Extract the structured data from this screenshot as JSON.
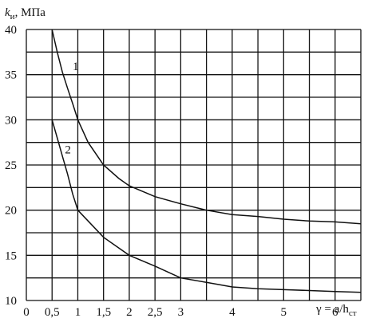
{
  "chart_data": {
    "type": "line",
    "ylabel_main": "k",
    "ylabel_sub": "и",
    "ylabel_unit": ", МПа",
    "xlabel_main": "γ = a/h",
    "xlabel_sub": "ст",
    "xlim": [
      0,
      6.5
    ],
    "ylim": [
      10,
      40
    ],
    "x_ticks": [
      {
        "value": 0,
        "label": "0"
      },
      {
        "value": 0.5,
        "label": "0,5"
      },
      {
        "value": 1,
        "label": "1"
      },
      {
        "value": 1.5,
        "label": "1,5"
      },
      {
        "value": 2,
        "label": "2"
      },
      {
        "value": 2.5,
        "label": "2,5"
      },
      {
        "value": 3,
        "label": "3"
      },
      {
        "value": 4,
        "label": "4"
      },
      {
        "value": 5,
        "label": "5"
      },
      {
        "value": 6,
        "label": "6"
      }
    ],
    "y_ticks": [
      {
        "value": 10,
        "label": "10"
      },
      {
        "value": 15,
        "label": "15"
      },
      {
        "value": 20,
        "label": "20"
      },
      {
        "value": 25,
        "label": "25"
      },
      {
        "value": 30,
        "label": "30"
      },
      {
        "value": 35,
        "label": "35"
      },
      {
        "value": 40,
        "label": "40"
      }
    ],
    "grid": true,
    "series": [
      {
        "name": "1",
        "label_at": [
          0.9,
          35.5
        ],
        "x": [
          0.5,
          0.6,
          0.7,
          0.8,
          0.9,
          1.0,
          1.2,
          1.5,
          1.8,
          2.0,
          2.5,
          3.0,
          3.5,
          4.0,
          4.5,
          5.0,
          5.5,
          6.0,
          6.5
        ],
        "y": [
          40,
          37.5,
          35.3,
          33.5,
          31.8,
          30,
          27.5,
          25,
          23.5,
          22.7,
          21.5,
          20.7,
          20,
          19.5,
          19.3,
          19.0,
          18.8,
          18.7,
          18.5
        ]
      },
      {
        "name": "2",
        "label_at": [
          0.75,
          26.3
        ],
        "x": [
          0.5,
          0.6,
          0.7,
          0.8,
          0.9,
          1.0,
          1.2,
          1.5,
          1.8,
          2.0,
          2.5,
          3.0,
          3.5,
          4.0,
          4.5,
          5.0,
          5.5,
          6.0,
          6.5
        ],
        "y": [
          30,
          28,
          26,
          24,
          21.8,
          20,
          18.8,
          17,
          15.8,
          15,
          13.8,
          12.5,
          12,
          11.5,
          11.3,
          11.2,
          11.1,
          11.0,
          10.9
        ]
      }
    ]
  }
}
